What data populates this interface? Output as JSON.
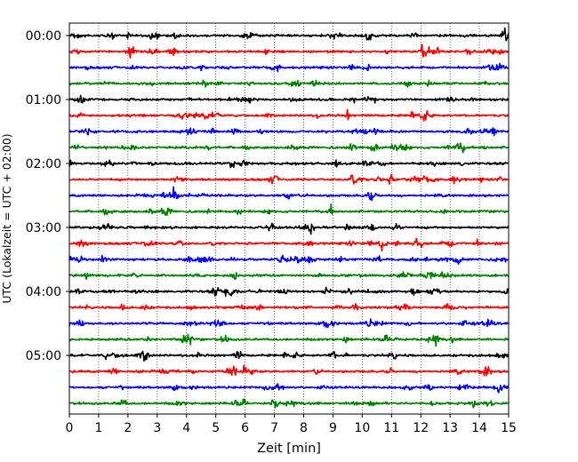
{
  "chart_data": {
    "type": "line",
    "title": "",
    "xlabel": "Zeit  [min]",
    "ylabel": "UTC (Lokalzeit = UTC + 02:00)",
    "xlim": [
      0,
      15
    ],
    "x_ticks": [
      0,
      1,
      2,
      3,
      4,
      5,
      6,
      7,
      8,
      9,
      10,
      11,
      12,
      13,
      14,
      15
    ],
    "x_grid": "dotted vertical lines at every minute",
    "y_tick_labels": [
      "00:00",
      "01:00",
      "02:00",
      "03:00",
      "04:00",
      "05:00"
    ],
    "trace_interval_min": 15,
    "trace_count": 24,
    "color_cycle": [
      "#000000",
      "#ff0000",
      "#0000ff",
      "#008000"
    ],
    "trace_start_times": [
      "00:00",
      "00:15",
      "00:30",
      "00:45",
      "01:00",
      "01:15",
      "01:30",
      "01:45",
      "02:00",
      "02:15",
      "02:30",
      "02:45",
      "03:00",
      "03:15",
      "03:30",
      "03:45",
      "04:00",
      "04:15",
      "04:30",
      "04:45",
      "05:00",
      "05:15",
      "05:30",
      "05:45"
    ],
    "events": [
      {
        "trace": "00:00",
        "t_min": 10.2,
        "amp": 0.25
      },
      {
        "trace": "00:00",
        "t_min": 11.8,
        "amp": 0.25
      },
      {
        "trace": "00:00",
        "t_min": 14.9,
        "amp": 0.5
      },
      {
        "trace": "00:45",
        "t_min": 11.5,
        "amp": 0.3
      },
      {
        "trace": "01:00",
        "t_min": 0.4,
        "amp": 0.3
      },
      {
        "trace": "01:15",
        "t_min": 9.5,
        "amp": 1.0
      },
      {
        "trace": "01:15",
        "t_min": 11.7,
        "amp": 0.9
      },
      {
        "trace": "01:15",
        "t_min": 12.1,
        "amp": 0.3
      },
      {
        "trace": "01:45",
        "t_min": 10.4,
        "amp": 0.3
      },
      {
        "trace": "02:15",
        "t_min": 11.0,
        "amp": 0.25
      },
      {
        "trace": "03:15",
        "t_min": 10.7,
        "amp": 0.45
      },
      {
        "trace": "03:30",
        "t_min": 7.3,
        "amp": 0.3
      },
      {
        "trace": "04:45",
        "t_min": 12.5,
        "amp": 0.3
      },
      {
        "trace": "05:00",
        "t_min": 9.0,
        "amp": 0.25
      },
      {
        "trace": "05:15",
        "t_min": 1.5,
        "amp": 0.25
      },
      {
        "trace": "05:15",
        "t_min": 14.3,
        "amp": 0.3
      },
      {
        "trace": "05:30",
        "t_min": 7.0,
        "amp": 0.3
      },
      {
        "trace": "05:45",
        "t_min": 9.8,
        "amp": 0.3
      }
    ]
  }
}
